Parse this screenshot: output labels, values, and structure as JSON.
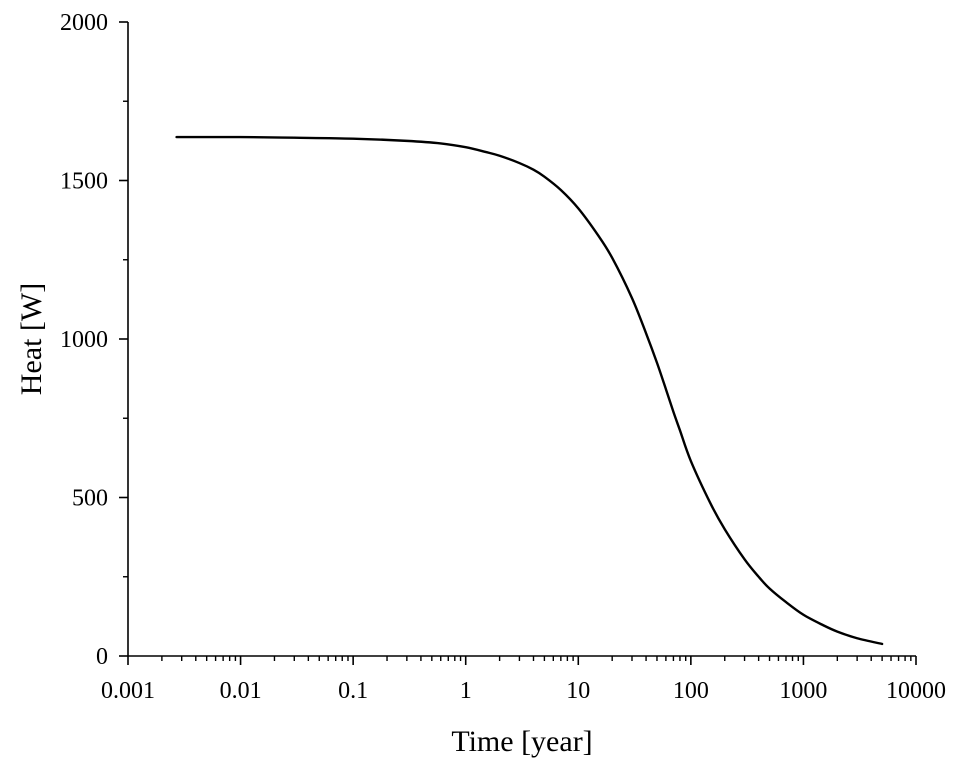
{
  "chart_data": {
    "type": "line",
    "title": "",
    "xlabel": "Time [year]",
    "ylabel": "Heat [W]",
    "x_scale": "log",
    "xlim": [
      0.001,
      10000
    ],
    "ylim": [
      0,
      2000
    ],
    "x_ticks": [
      0.001,
      0.01,
      0.1,
      1,
      10,
      100,
      1000,
      10000
    ],
    "x_tick_labels": [
      "0.001",
      "0.01",
      "0.1",
      "1",
      "10",
      "100",
      "1000",
      "10000"
    ],
    "y_ticks": [
      0,
      500,
      1000,
      1500,
      2000
    ],
    "y_tick_labels": [
      "0",
      "500",
      "1000",
      "1500",
      "2000"
    ],
    "grid": false,
    "line_color": "#000000",
    "series": [
      {
        "name": "Heat",
        "x": [
          0.0027,
          0.005,
          0.01,
          0.03,
          0.1,
          0.3,
          0.6,
          1,
          1.5,
          2,
          3,
          4,
          5,
          7,
          10,
          15,
          20,
          30,
          40,
          50,
          60,
          70,
          80,
          100,
          150,
          200,
          300,
          400,
          500,
          700,
          1000,
          1500,
          2000,
          3000,
          5000
        ],
        "values": [
          1637,
          1637,
          1637,
          1635,
          1632,
          1625,
          1617,
          1605,
          1590,
          1578,
          1555,
          1534,
          1512,
          1470,
          1412,
          1327,
          1256,
          1129,
          1018,
          925,
          842,
          770,
          712,
          615,
          480,
          400,
          305,
          250,
          213,
          170,
          130,
          97,
          77,
          56,
          38
        ]
      }
    ]
  }
}
